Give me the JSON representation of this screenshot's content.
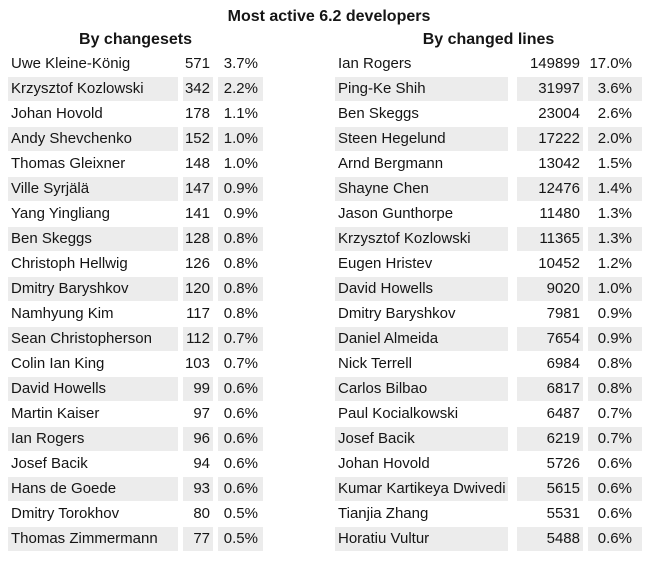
{
  "colors": {
    "background": "#ffffff",
    "text": "#151515",
    "stripe": "#ececec"
  },
  "chart_data": {
    "type": "table",
    "title": "Most active 6.2 developers",
    "layout": {
      "legend": "none",
      "grid": "off",
      "stripe_rows": "even"
    },
    "tables": [
      {
        "header": "By changesets",
        "rows": [
          {
            "name": "Uwe Kleine-König",
            "value": 571,
            "share": "3.7%"
          },
          {
            "name": "Krzysztof Kozlowski",
            "value": 342,
            "share": "2.2%"
          },
          {
            "name": "Johan Hovold",
            "value": 178,
            "share": "1.1%"
          },
          {
            "name": "Andy Shevchenko",
            "value": 152,
            "share": "1.0%"
          },
          {
            "name": "Thomas Gleixner",
            "value": 148,
            "share": "1.0%"
          },
          {
            "name": "Ville Syrjälä",
            "value": 147,
            "share": "0.9%"
          },
          {
            "name": "Yang Yingliang",
            "value": 141,
            "share": "0.9%"
          },
          {
            "name": "Ben Skeggs",
            "value": 128,
            "share": "0.8%"
          },
          {
            "name": "Christoph Hellwig",
            "value": 126,
            "share": "0.8%"
          },
          {
            "name": "Dmitry Baryshkov",
            "value": 120,
            "share": "0.8%"
          },
          {
            "name": "Namhyung Kim",
            "value": 117,
            "share": "0.8%"
          },
          {
            "name": "Sean Christopherson",
            "value": 112,
            "share": "0.7%"
          },
          {
            "name": "Colin Ian King",
            "value": 103,
            "share": "0.7%"
          },
          {
            "name": "David Howells",
            "value": 99,
            "share": "0.6%"
          },
          {
            "name": "Martin Kaiser",
            "value": 97,
            "share": "0.6%"
          },
          {
            "name": "Ian Rogers",
            "value": 96,
            "share": "0.6%"
          },
          {
            "name": "Josef Bacik",
            "value": 94,
            "share": "0.6%"
          },
          {
            "name": "Hans de Goede",
            "value": 93,
            "share": "0.6%"
          },
          {
            "name": "Dmitry Torokhov",
            "value": 80,
            "share": "0.5%"
          },
          {
            "name": "Thomas Zimmermann",
            "value": 77,
            "share": "0.5%"
          }
        ]
      },
      {
        "header": "By changed lines",
        "rows": [
          {
            "name": "Ian Rogers",
            "value": 149899,
            "share": "17.0%"
          },
          {
            "name": "Ping-Ke Shih",
            "value": 31997,
            "share": "3.6%"
          },
          {
            "name": "Ben Skeggs",
            "value": 23004,
            "share": "2.6%"
          },
          {
            "name": "Steen Hegelund",
            "value": 17222,
            "share": "2.0%"
          },
          {
            "name": "Arnd Bergmann",
            "value": 13042,
            "share": "1.5%"
          },
          {
            "name": "Shayne Chen",
            "value": 12476,
            "share": "1.4%"
          },
          {
            "name": "Jason Gunthorpe",
            "value": 11480,
            "share": "1.3%"
          },
          {
            "name": "Krzysztof Kozlowski",
            "value": 11365,
            "share": "1.3%"
          },
          {
            "name": "Eugen Hristev",
            "value": 10452,
            "share": "1.2%"
          },
          {
            "name": "David Howells",
            "value": 9020,
            "share": "1.0%"
          },
          {
            "name": "Dmitry Baryshkov",
            "value": 7981,
            "share": "0.9%"
          },
          {
            "name": "Daniel Almeida",
            "value": 7654,
            "share": "0.9%"
          },
          {
            "name": "Nick Terrell",
            "value": 6984,
            "share": "0.8%"
          },
          {
            "name": "Carlos Bilbao",
            "value": 6817,
            "share": "0.8%"
          },
          {
            "name": "Paul Kocialkowski",
            "value": 6487,
            "share": "0.7%"
          },
          {
            "name": "Josef Bacik",
            "value": 6219,
            "share": "0.7%"
          },
          {
            "name": "Johan Hovold",
            "value": 5726,
            "share": "0.6%"
          },
          {
            "name": "Kumar Kartikeya Dwivedi",
            "value": 5615,
            "share": "0.6%"
          },
          {
            "name": "Tianjia Zhang",
            "value": 5531,
            "share": "0.6%"
          },
          {
            "name": "Horatiu Vultur",
            "value": 5488,
            "share": "0.6%"
          }
        ]
      }
    ]
  }
}
